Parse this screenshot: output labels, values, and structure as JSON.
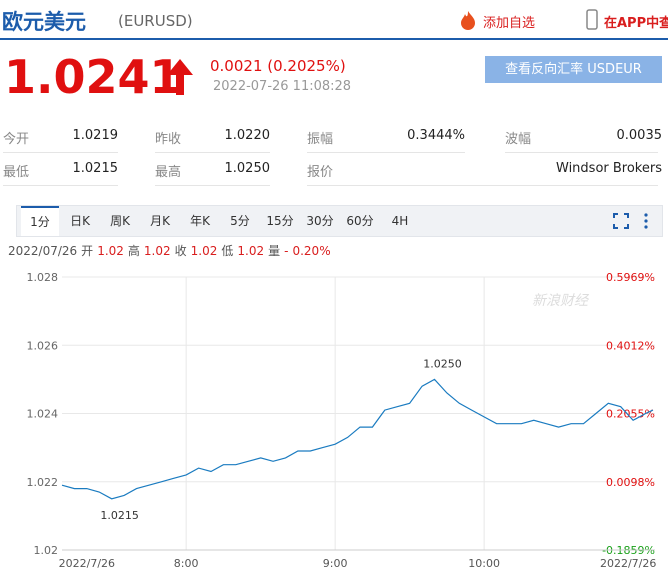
{
  "header": {
    "title": "欧元美元",
    "code": "(EURUSD)",
    "add": "添加自选",
    "app": "在APP中查看"
  },
  "quote": {
    "price": "1.0241",
    "change": "0.0021 (0.2025%)",
    "time": "2022-07-26 11:08:28",
    "button": "查看反向汇率 USDEUR"
  },
  "stats": {
    "rows": [
      [
        {
          "label": "今开",
          "value": "1.0219"
        },
        {
          "label": "昨收",
          "value": "1.0220"
        },
        {
          "label": "振幅",
          "value": "0.3444%"
        },
        {
          "label": "波幅",
          "value": "0.0035"
        }
      ],
      [
        {
          "label": "最低",
          "value": "1.0215"
        },
        {
          "label": "最高",
          "value": "1.0250"
        },
        {
          "label": "报价",
          "value": "Windsor Brokers"
        }
      ]
    ]
  },
  "tabs": [
    "1分",
    "日K",
    "周K",
    "月K",
    "年K",
    "5分",
    "15分",
    "30分",
    "60分",
    "4H"
  ],
  "info": {
    "date": "2022/07/26",
    "items": [
      {
        "label": "开",
        "value": "1.02"
      },
      {
        "label": "高",
        "value": "1.02"
      },
      {
        "label": "收",
        "value": "1.02"
      },
      {
        "label": "低",
        "value": "1.02"
      },
      {
        "label": "量",
        "value": "-"
      }
    ],
    "change": "0.20%"
  },
  "chart_data": {
    "type": "line",
    "watermark": "新浪财经",
    "x": [
      "7:10",
      "7:15",
      "7:20",
      "7:25",
      "7:30",
      "7:35",
      "7:40",
      "7:45",
      "7:50",
      "7:55",
      "8:00",
      "8:05",
      "8:10",
      "8:15",
      "8:20",
      "8:25",
      "8:30",
      "8:35",
      "8:40",
      "8:45",
      "8:50",
      "8:55",
      "9:00",
      "9:05",
      "9:10",
      "9:15",
      "9:20",
      "9:25",
      "9:30",
      "9:35",
      "9:40",
      "9:45",
      "9:50",
      "9:55",
      "10:00",
      "10:05",
      "10:10",
      "10:15",
      "10:20",
      "10:25",
      "10:30",
      "10:35",
      "10:40",
      "10:45",
      "10:50",
      "10:55",
      "11:00",
      "11:05",
      "11:08"
    ],
    "series": [
      {
        "name": "EURUSD",
        "color": "#1a7bc0",
        "values": [
          1.0219,
          1.0218,
          1.0218,
          1.0217,
          1.0215,
          1.0216,
          1.0218,
          1.0219,
          1.022,
          1.0221,
          1.0222,
          1.0224,
          1.0223,
          1.0225,
          1.0225,
          1.0226,
          1.0227,
          1.0226,
          1.0227,
          1.0229,
          1.0229,
          1.023,
          1.0231,
          1.0233,
          1.0236,
          1.0236,
          1.0241,
          1.0242,
          1.0243,
          1.0248,
          1.025,
          1.0246,
          1.0243,
          1.0241,
          1.0239,
          1.0237,
          1.0237,
          1.0237,
          1.0238,
          1.0237,
          1.0236,
          1.0237,
          1.0237,
          1.024,
          1.0243,
          1.0242,
          1.0238,
          1.024,
          1.0241
        ]
      }
    ],
    "annotations": [
      {
        "x": "9:40",
        "text": "1.0250"
      },
      {
        "x": "7:30",
        "text": "1.0215"
      }
    ],
    "xlim": [
      "7:10",
      "11:08"
    ],
    "xticks": [
      {
        "value": "7:20",
        "label": "2022/7/26"
      },
      "8:00",
      "9:00",
      "10:00",
      {
        "value": "10:58",
        "label": "2022/7/26"
      }
    ],
    "ylim": [
      1.02,
      1.028
    ],
    "yticks": [
      {
        "value": 1.02,
        "label": "1.02"
      },
      {
        "value": 1.022,
        "label": "1.022"
      },
      {
        "value": 1.024,
        "label": "1.024"
      },
      {
        "value": 1.026,
        "label": "1.026"
      },
      {
        "value": 1.028,
        "label": "1.028"
      }
    ],
    "y2lim": [
      -0.1859,
      0.5969
    ],
    "y2ticks": [
      {
        "value": -0.1859,
        "label": "-0.1859%"
      },
      {
        "value": 0.0098,
        "label": "0.0098%"
      },
      {
        "value": 0.2055,
        "label": "0.2055%"
      },
      {
        "value": 0.4012,
        "label": "0.4012%"
      },
      {
        "value": 0.5969,
        "label": "0.5969%"
      }
    ],
    "grid": true
  }
}
